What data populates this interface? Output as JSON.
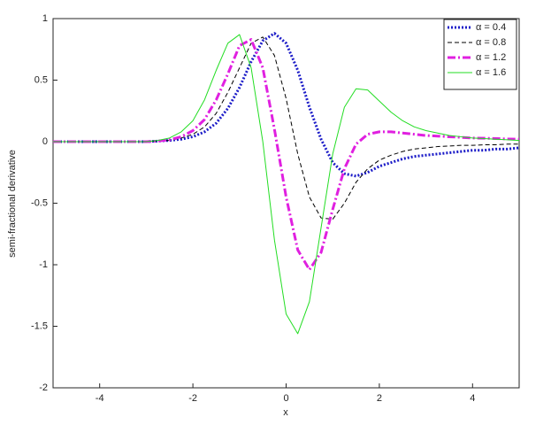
{
  "chart_data": {
    "type": "line",
    "xlabel": "x",
    "ylabel": "semi-fractional derivative",
    "x": [
      -5,
      -4.75,
      -4.5,
      -4.25,
      -4,
      -3.75,
      -3.5,
      -3.25,
      -3,
      -2.75,
      -2.5,
      -2.25,
      -2,
      -1.75,
      -1.5,
      -1.25,
      -1,
      -0.75,
      -0.5,
      -0.25,
      0,
      0.25,
      0.5,
      0.75,
      1,
      1.25,
      1.5,
      1.75,
      2,
      2.25,
      2.5,
      2.75,
      3,
      3.25,
      3.5,
      3.75,
      4,
      4.25,
      4.5,
      4.75,
      5
    ],
    "series": [
      {
        "name": "α = 0.4",
        "color": "#1c1cc8",
        "line_style": "dotted",
        "line_width": 3,
        "values": [
          0,
          0,
          0,
          0,
          0,
          0,
          0,
          0,
          0,
          0.005,
          0.01,
          0.02,
          0.04,
          0.08,
          0.15,
          0.27,
          0.44,
          0.65,
          0.82,
          0.88,
          0.8,
          0.58,
          0.28,
          0.02,
          -0.17,
          -0.26,
          -0.28,
          -0.25,
          -0.2,
          -0.17,
          -0.14,
          -0.12,
          -0.11,
          -0.1,
          -0.09,
          -0.08,
          -0.07,
          -0.07,
          -0.06,
          -0.06,
          -0.05
        ]
      },
      {
        "name": "α = 0.8",
        "color": "#000000",
        "line_style": "dashed",
        "line_width": 1,
        "values": [
          0,
          0,
          0,
          0,
          0,
          0,
          0,
          0,
          0,
          0.005,
          0.01,
          0.03,
          0.06,
          0.12,
          0.23,
          0.4,
          0.6,
          0.8,
          0.85,
          0.7,
          0.35,
          -0.1,
          -0.45,
          -0.62,
          -0.63,
          -0.5,
          -0.33,
          -0.22,
          -0.15,
          -0.11,
          -0.08,
          -0.06,
          -0.05,
          -0.04,
          -0.035,
          -0.03,
          -0.03,
          -0.025,
          -0.025,
          -0.02,
          -0.02
        ]
      },
      {
        "name": "α = 1.2",
        "color": "#e020e0",
        "line_style": "dashdot",
        "line_width": 3,
        "values": [
          0,
          0,
          0,
          0,
          0,
          0,
          0,
          0,
          0,
          0.005,
          0.015,
          0.04,
          0.09,
          0.18,
          0.34,
          0.55,
          0.78,
          0.83,
          0.6,
          0.1,
          -0.45,
          -0.88,
          -1.04,
          -0.9,
          -0.55,
          -0.22,
          -0.02,
          0.06,
          0.08,
          0.08,
          0.07,
          0.06,
          0.05,
          0.045,
          0.04,
          0.035,
          0.03,
          0.028,
          0.025,
          0.022,
          0.02
        ]
      },
      {
        "name": "α = 1.6",
        "color": "#22dd22",
        "line_style": "solid",
        "line_width": 1,
        "values": [
          0,
          0,
          0,
          0,
          0,
          0,
          0,
          0,
          0,
          0.01,
          0.03,
          0.08,
          0.17,
          0.34,
          0.58,
          0.8,
          0.87,
          0.6,
          0,
          -0.8,
          -1.4,
          -1.56,
          -1.3,
          -0.7,
          -0.1,
          0.28,
          0.43,
          0.42,
          0.33,
          0.24,
          0.17,
          0.12,
          0.09,
          0.07,
          0.05,
          0.04,
          0.03,
          0.025,
          0.02,
          0.015,
          0.01
        ]
      }
    ],
    "xlim": [
      -5,
      5
    ],
    "xticks": [
      -4,
      -2,
      0,
      2,
      4
    ],
    "ylim": [
      -2,
      1
    ],
    "yticks": [
      -2,
      -1.5,
      -1,
      -0.5,
      0,
      0.5,
      1
    ],
    "grid": false,
    "legend": "top-right"
  }
}
